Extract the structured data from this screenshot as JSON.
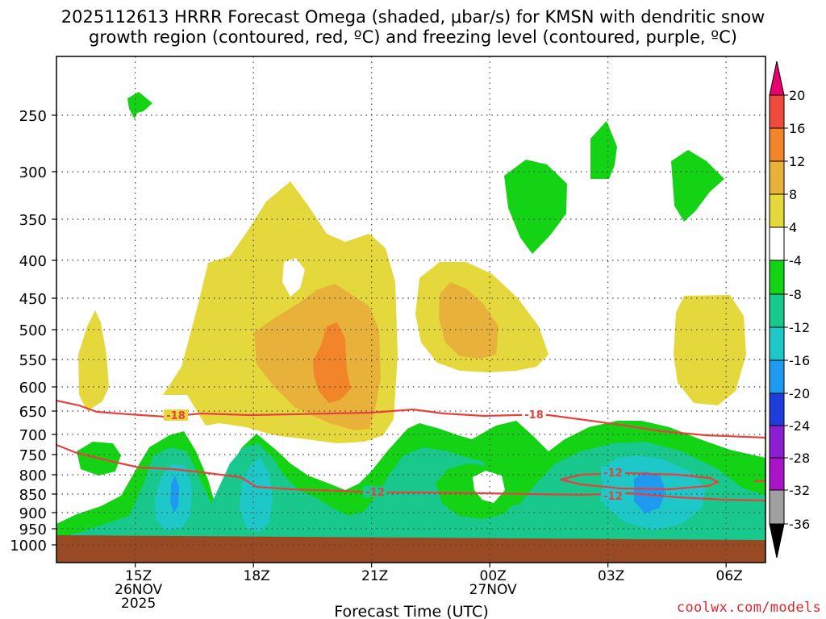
{
  "chart_data": {
    "type": "contour-timeheight",
    "title_line1": "2025112613 HRRR Forecast Omega (shaded, μbar/s) for KMSN with dendritic snow",
    "title_line2": "growth region (contoured, red, ºC) and freezing level (contoured, purple, ºC)",
    "xlabel": "Forecast Time (UTC)",
    "x_ticks": [
      {
        "hour": 15,
        "label": "15Z",
        "sub1": "26NOV",
        "sub2": "2025"
      },
      {
        "hour": 18,
        "label": "18Z",
        "sub1": "",
        "sub2": ""
      },
      {
        "hour": 21,
        "label": "21Z",
        "sub1": "",
        "sub2": ""
      },
      {
        "hour": 24,
        "label": "00Z",
        "sub1": "27NOV",
        "sub2": ""
      },
      {
        "hour": 27,
        "label": "03Z",
        "sub1": "",
        "sub2": ""
      },
      {
        "hour": 30,
        "label": "06Z",
        "sub1": "",
        "sub2": ""
      }
    ],
    "x_range_hours": [
      13.0,
      31.0
    ],
    "y_ticks": [
      "250",
      "300",
      "350",
      "400",
      "450",
      "500",
      "550",
      "600",
      "650",
      "700",
      "750",
      "800",
      "850",
      "900",
      "950",
      "1000"
    ],
    "y_unit": "hPa",
    "colorbar": {
      "labels": [
        "20",
        "16",
        "12",
        "8",
        "4",
        "-4",
        "-8",
        "-12",
        "-16",
        "-20",
        "-24",
        "-28",
        "-32",
        "-36"
      ],
      "bins": [
        {
          "range": ">20",
          "color": "#e8006e"
        },
        {
          "range": "16 to 20",
          "color": "#f04a3c"
        },
        {
          "range": "12 to 16",
          "color": "#f2852a"
        },
        {
          "range": "8 to 12",
          "color": "#e8b23a"
        },
        {
          "range": "4 to 8",
          "color": "#e5d83c"
        },
        {
          "range": "-4 to 4",
          "color": "#ffffff"
        },
        {
          "range": "-8 to -4",
          "color": "#14d214"
        },
        {
          "range": "-12 to -8",
          "color": "#19c88c"
        },
        {
          "range": "-16 to -12",
          "color": "#1fc8c8"
        },
        {
          "range": "-20 to -16",
          "color": "#1e9bf0"
        },
        {
          "range": "-24 to -20",
          "color": "#1e3cdc"
        },
        {
          "range": "-28 to -24",
          "color": "#8c1ed2"
        },
        {
          "range": "-32 to -28",
          "color": "#aa14c8"
        },
        {
          "range": "-36 to -32",
          "color": "#a0a0a0"
        },
        {
          "range": "<-36",
          "color": "#000000"
        }
      ]
    },
    "contours": [
      {
        "name": "dendritic-upper",
        "level": "-18",
        "color": "#e84040"
      },
      {
        "name": "dendritic-lower",
        "level": "-12",
        "color": "#e84040"
      }
    ],
    "contour_labels": [
      "-18",
      "-18",
      "-12",
      "-12",
      "-12"
    ],
    "ground_color": "#9a4a22"
  },
  "credit": "coolwx.com/models"
}
